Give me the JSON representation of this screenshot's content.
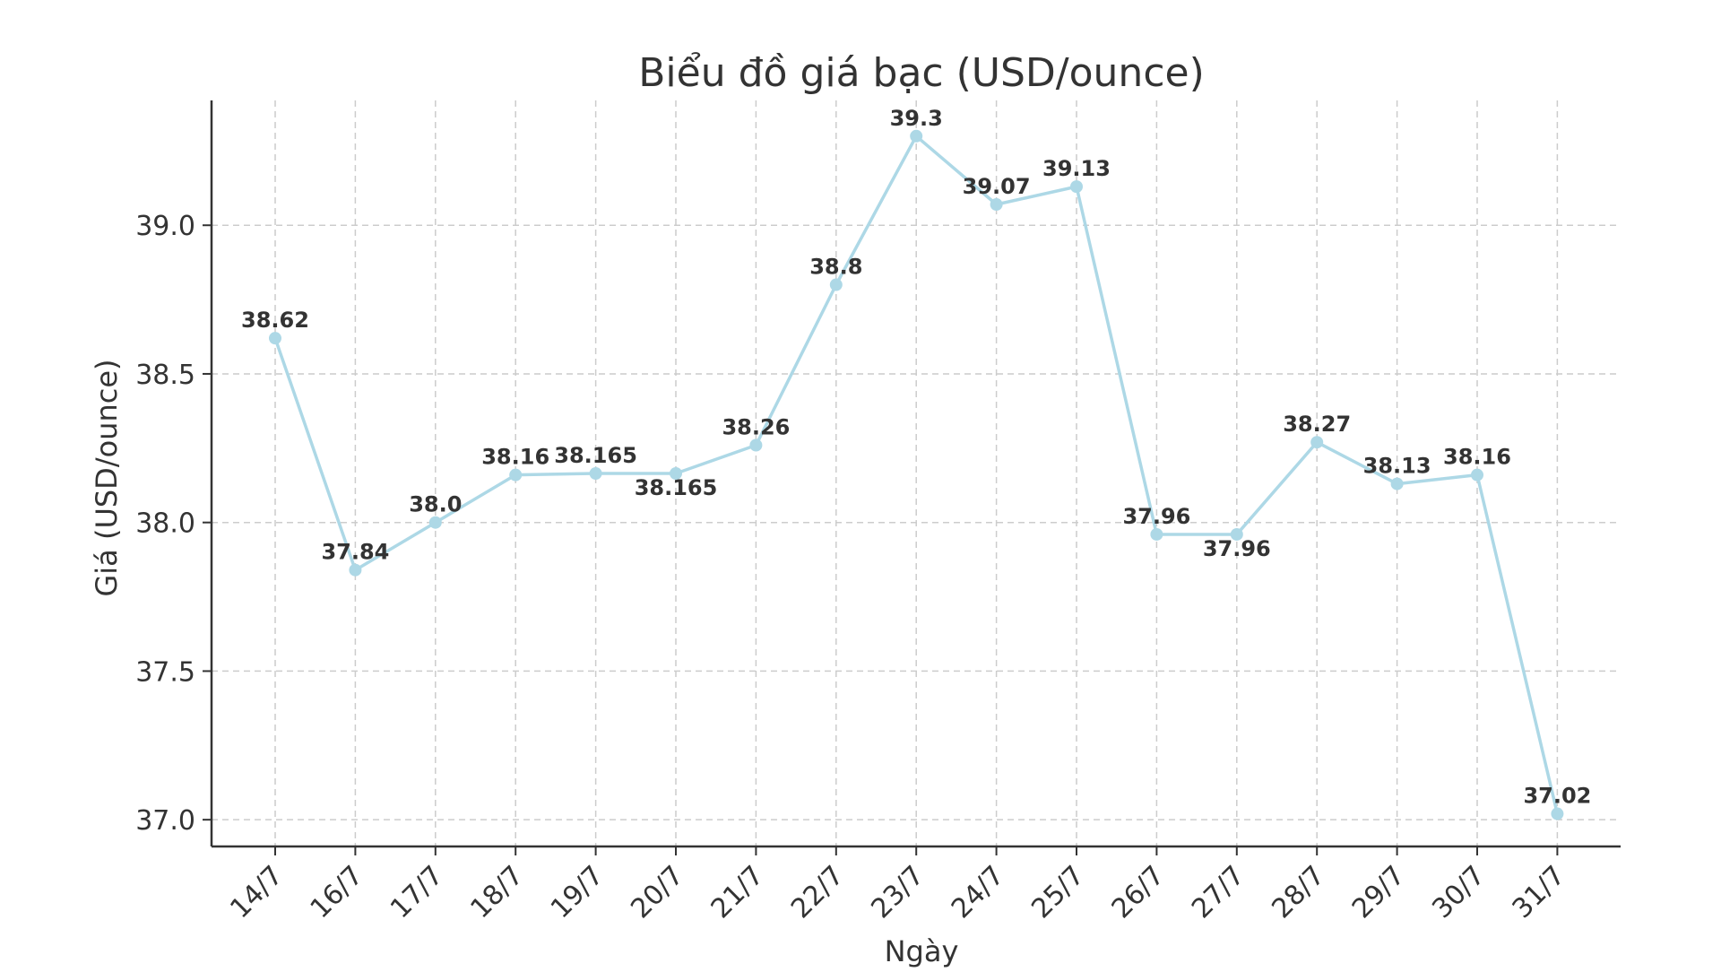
{
  "chart_data": {
    "type": "line",
    "title": "Biểu đồ giá bạc (USD/ounce)",
    "xlabel": "Ngày",
    "ylabel": "Giá (USD/ounce)",
    "categories": [
      "14/7",
      "16/7",
      "17/7",
      "18/7",
      "19/7",
      "20/7",
      "21/7",
      "22/7",
      "23/7",
      "24/7",
      "25/7",
      "26/7",
      "27/7",
      "28/7",
      "29/7",
      "30/7",
      "31/7"
    ],
    "series": [
      {
        "values": [
          38.62,
          37.84,
          38.0,
          38.16,
          38.165,
          38.165,
          38.26,
          38.8,
          39.3,
          39.07,
          39.13,
          37.96,
          37.96,
          38.27,
          38.13,
          38.16,
          37.02
        ],
        "labels": [
          "38.62",
          "37.84",
          "38.0",
          "38.16",
          "38.165",
          "38.165",
          "38.26",
          "38.8",
          "39.3",
          "39.07",
          "39.13",
          "37.96",
          "37.96",
          "38.27",
          "38.13",
          "38.16",
          "37.02"
        ]
      }
    ],
    "yticks": [
      "37.0",
      "37.5",
      "38.0",
      "38.5",
      "39.0"
    ],
    "ylim": [
      36.91,
      39.42
    ],
    "grid": true,
    "line_color": "#add8e6",
    "axis_color": "#333333",
    "grid_color": "#cccccc"
  }
}
